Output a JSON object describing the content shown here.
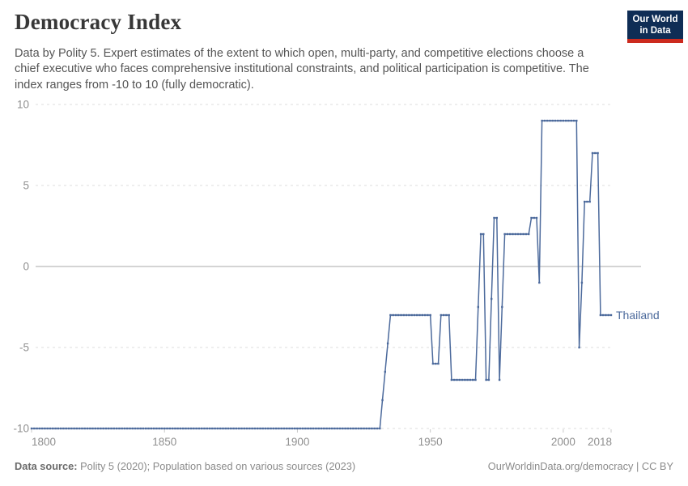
{
  "header": {
    "title": "Democracy Index",
    "subtitle_lines": [
      "Data by Polity 5. Expert estimates of the extent to which open, multi-party, and competitive elections choose a",
      "chief executive who faces comprehensive institutional constraints, and political participation is competitive. The",
      "index ranges from -10 to 10 (fully democratic)."
    ],
    "logo": {
      "line1": "Our World",
      "line2": "in Data"
    }
  },
  "colors": {
    "line_blue": "#4C6A9C",
    "logo_navy": "#0f2d55",
    "logo_red": "#cc2a1e",
    "grid_dashed": "#dddddd",
    "zero_line": "#a8a8a8",
    "tick_mark": "#c8c8c8",
    "axis_text": "#8f8f8f"
  },
  "chart_data": {
    "type": "line",
    "title": "Democracy Index",
    "entity": "Thailand",
    "series_label": "Thailand",
    "xlim": [
      1800,
      2018
    ],
    "ylim": [
      -10,
      10
    ],
    "x_ticks": [
      1800,
      1850,
      1900,
      1950,
      2000,
      2018
    ],
    "y_ticks": [
      10,
      5,
      0,
      -5,
      -10
    ],
    "grid": "horizontal dashed gridlines at 10, 5, -5, -10; solid gray line at 0",
    "legend_position": "end-of-line label",
    "marker": "small square at every year",
    "points_breakpoints": [
      [
        1800,
        -10
      ],
      [
        1931,
        -10
      ],
      [
        1932,
        -8.25
      ],
      [
        1933,
        -6.5
      ],
      [
        1934,
        -4.75
      ],
      [
        1935,
        -3
      ],
      [
        1950,
        -3
      ],
      [
        1951,
        -6
      ],
      [
        1953,
        -6
      ],
      [
        1954,
        -3
      ],
      [
        1957,
        -3
      ],
      [
        1958,
        -7
      ],
      [
        1967,
        -7
      ],
      [
        1968,
        -2.5
      ],
      [
        1969,
        2
      ],
      [
        1970,
        2
      ],
      [
        1971,
        -7
      ],
      [
        1972,
        -7
      ],
      [
        1973,
        -2
      ],
      [
        1974,
        3
      ],
      [
        1975,
        3
      ],
      [
        1976,
        -7
      ],
      [
        1977,
        -2.5
      ],
      [
        1978,
        2
      ],
      [
        1987,
        2
      ],
      [
        1988,
        3
      ],
      [
        1990,
        3
      ],
      [
        1991,
        -1
      ],
      [
        1992,
        9
      ],
      [
        2005,
        9
      ],
      [
        2006,
        -5
      ],
      [
        2007,
        -1
      ],
      [
        2008,
        4
      ],
      [
        2010,
        4
      ],
      [
        2011,
        7
      ],
      [
        2013,
        7
      ],
      [
        2014,
        -3
      ],
      [
        2018,
        -3
      ]
    ],
    "note": "One data point per year 1800-2018; equal-valued breakpoints delimit plateaus filled per-year."
  },
  "footer": {
    "source_label": "Data source:",
    "source_text": " Polity 5 (2020); Population based on various sources (2023)",
    "link_text": "OurWorldinData.org/democracy | CC BY"
  }
}
